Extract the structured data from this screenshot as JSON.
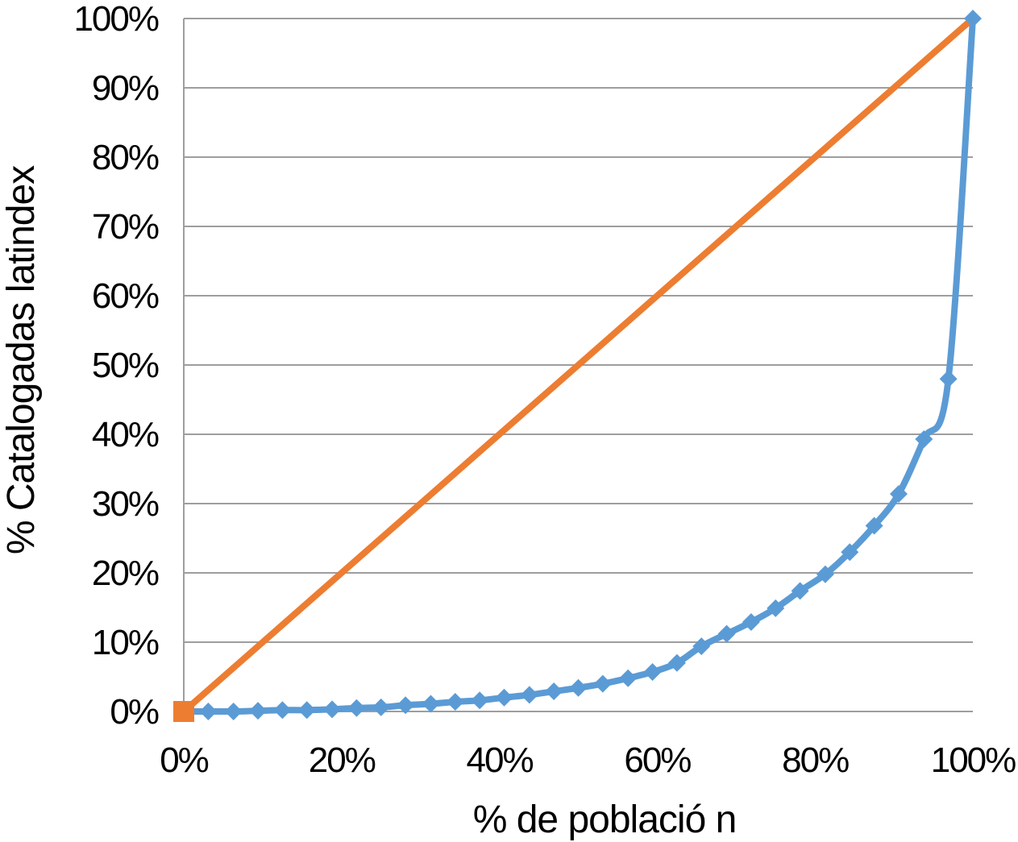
{
  "figure": {
    "background_color": "#ffffff",
    "text_color": "#000000"
  },
  "chart_data": {
    "type": "line",
    "title": "",
    "xlabel": "% de població n",
    "ylabel": "% Catalogadas latindex",
    "xlim": [
      0,
      100
    ],
    "ylim": [
      0,
      100
    ],
    "grid": "horizontal",
    "gridline_color": "#9e9e9e",
    "axis_line_color": "#9e9e9e",
    "legend": "none",
    "x_axis": {
      "tick_values": [
        0,
        20,
        40,
        60,
        80,
        100
      ],
      "tick_labels": [
        "0%",
        "20%",
        "40%",
        "60%",
        "80%",
        "100%"
      ]
    },
    "y_axis": {
      "tick_values": [
        0,
        10,
        20,
        30,
        40,
        50,
        60,
        70,
        80,
        90,
        100
      ],
      "tick_labels": [
        "0%",
        "10%",
        "20%",
        "30%",
        "40%",
        "50%",
        "60%",
        "70%",
        "80%",
        "90%",
        "100%"
      ]
    },
    "series": [
      {
        "name": "lorenz-curve",
        "color": "#5B9BD5",
        "marker": "diamond",
        "smooth": true,
        "line_width": 8,
        "points": [
          [
            0,
            0
          ],
          [
            3.1,
            0
          ],
          [
            6.3,
            0
          ],
          [
            9.4,
            0.1
          ],
          [
            12.5,
            0.2
          ],
          [
            15.6,
            0.2
          ],
          [
            18.8,
            0.3
          ],
          [
            21.9,
            0.5
          ],
          [
            25,
            0.6
          ],
          [
            28.1,
            0.9
          ],
          [
            31.3,
            1.1
          ],
          [
            34.4,
            1.4
          ],
          [
            37.5,
            1.6
          ],
          [
            40.6,
            2
          ],
          [
            43.8,
            2.4
          ],
          [
            46.9,
            2.9
          ],
          [
            50,
            3.4
          ],
          [
            53.1,
            4
          ],
          [
            56.3,
            4.8
          ],
          [
            59.4,
            5.7
          ],
          [
            62.5,
            7
          ],
          [
            65.6,
            9.4
          ],
          [
            68.8,
            11.2
          ],
          [
            71.9,
            12.9
          ],
          [
            75,
            14.9
          ],
          [
            78.1,
            17.4
          ],
          [
            81.3,
            19.8
          ],
          [
            84.4,
            23
          ],
          [
            87.5,
            26.8
          ],
          [
            90.6,
            31.4
          ],
          [
            93.8,
            39.3
          ],
          [
            96.9,
            48
          ],
          [
            100,
            100
          ]
        ]
      },
      {
        "name": "equality-diagonal",
        "color": "#ED7D31",
        "marker": "square",
        "marker_at": "start",
        "smooth": false,
        "line_width": 8,
        "points": [
          [
            0,
            0
          ],
          [
            100,
            100
          ]
        ]
      }
    ]
  }
}
